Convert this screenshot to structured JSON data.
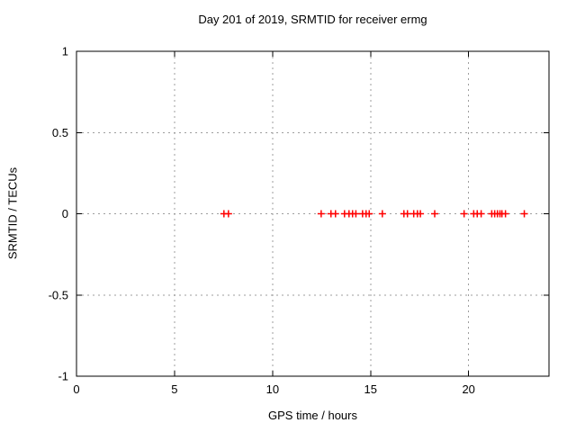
{
  "page": {
    "background": "#ffffff"
  },
  "chart_data": {
    "type": "scatter",
    "title": "Day 201 of 2019, SRMTID for receiver ermg",
    "xlabel": "GPS time / hours",
    "ylabel": "SRMTID / TECUs",
    "xlim": [
      0,
      24.1
    ],
    "ylim": [
      -1,
      1
    ],
    "xticks": {
      "values": [
        0,
        5,
        10,
        15,
        20
      ],
      "labels": [
        "0",
        "5",
        "10",
        "15",
        "20"
      ]
    },
    "yticks": {
      "values": [
        1,
        0.5,
        0,
        -0.5,
        -1
      ],
      "labels": [
        "1",
        "0.5",
        "0",
        "-0.5",
        "-1"
      ]
    },
    "grid": true,
    "grid_style": "dashed",
    "legend_position": "none",
    "marker_style": "plus",
    "colors": {
      "marker": "#ff0000",
      "grid": "#9e9e9e",
      "axis": "#000000",
      "text": "#000000",
      "background": "#ffffff"
    },
    "series": [
      {
        "name": "SRMTID",
        "x": [
          7.52,
          7.75,
          12.48,
          12.98,
          13.21,
          13.67,
          13.9,
          14.08,
          14.25,
          14.59,
          14.77,
          14.93,
          15.6,
          16.7,
          16.88,
          17.2,
          17.39,
          17.54,
          18.27,
          19.77,
          20.26,
          20.44,
          20.64,
          21.18,
          21.33,
          21.47,
          21.6,
          21.7,
          21.88,
          22.84
        ],
        "y": [
          0,
          0,
          0,
          0,
          0,
          0,
          0,
          0,
          0,
          0,
          0,
          0,
          0,
          0,
          0,
          0,
          0,
          0,
          0,
          0,
          0,
          0,
          0,
          0,
          0,
          0,
          0,
          0,
          0,
          0
        ]
      }
    ]
  }
}
